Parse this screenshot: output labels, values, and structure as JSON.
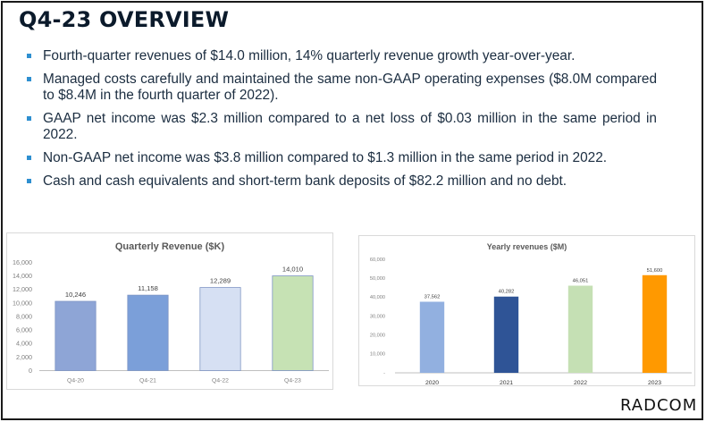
{
  "slide": {
    "title": "Q4-23 OVERVIEW",
    "bullets": [
      "Fourth-quarter revenues of $14.0 million, 14% quarterly revenue growth year-over-year.",
      "Managed costs carefully and maintained the same non-GAAP operating expenses ($8.0M compared to $8.4M in the fourth quarter of 2022).",
      "GAAP net income was $2.3 million compared to a net loss of $0.03 million in the same period in 2022.",
      "Non-GAAP net income was $3.8 million compared to $1.3 million in the same period in 2022.",
      "Cash and cash equivalents and short-term bank deposits of $82.2 million and no debt."
    ],
    "logo": "RADCOM",
    "bullet_color": "#2e8fd0"
  },
  "chart_data": [
    {
      "type": "bar",
      "title": "Quarterly Revenue ($K)",
      "categories": [
        "Q4-20",
        "Q4-21",
        "Q4-22",
        "Q4-23"
      ],
      "values": [
        10246,
        11158,
        12289,
        14010
      ],
      "value_labels": [
        "10,246",
        "11,158",
        "12,289",
        "14,010"
      ],
      "bar_colors": [
        "#8ea5d6",
        "#7b9fd9",
        "#d6e0f3",
        "#c6e2b4"
      ],
      "ylim": [
        0,
        16000
      ],
      "yticks": [
        0,
        2000,
        4000,
        6000,
        8000,
        10000,
        12000,
        14000,
        16000
      ],
      "ytick_labels": [
        "0",
        "2,000",
        "4,000",
        "6,000",
        "8,000",
        "10,000",
        "12,000",
        "14,000",
        "16,000"
      ],
      "grid": false,
      "legend": "none"
    },
    {
      "type": "bar",
      "title": "Yearly revenues ($M)",
      "categories": [
        "2020",
        "2021",
        "2022",
        "2023"
      ],
      "values": [
        37562,
        40282,
        46051,
        51600
      ],
      "value_labels": [
        "37,562",
        "40,282",
        "46,051",
        "51,600"
      ],
      "bar_colors": [
        "#92b0e0",
        "#2f5496",
        "#c5e0b4",
        "#ff9900"
      ],
      "ylim": [
        0,
        60000
      ],
      "yticks": [
        0,
        10000,
        20000,
        30000,
        40000,
        50000,
        60000
      ],
      "ytick_labels": [
        "-",
        "10,000",
        "20,000",
        "30,000",
        "40,000",
        "50,000",
        "60,000"
      ],
      "grid": false,
      "legend": "none"
    }
  ]
}
